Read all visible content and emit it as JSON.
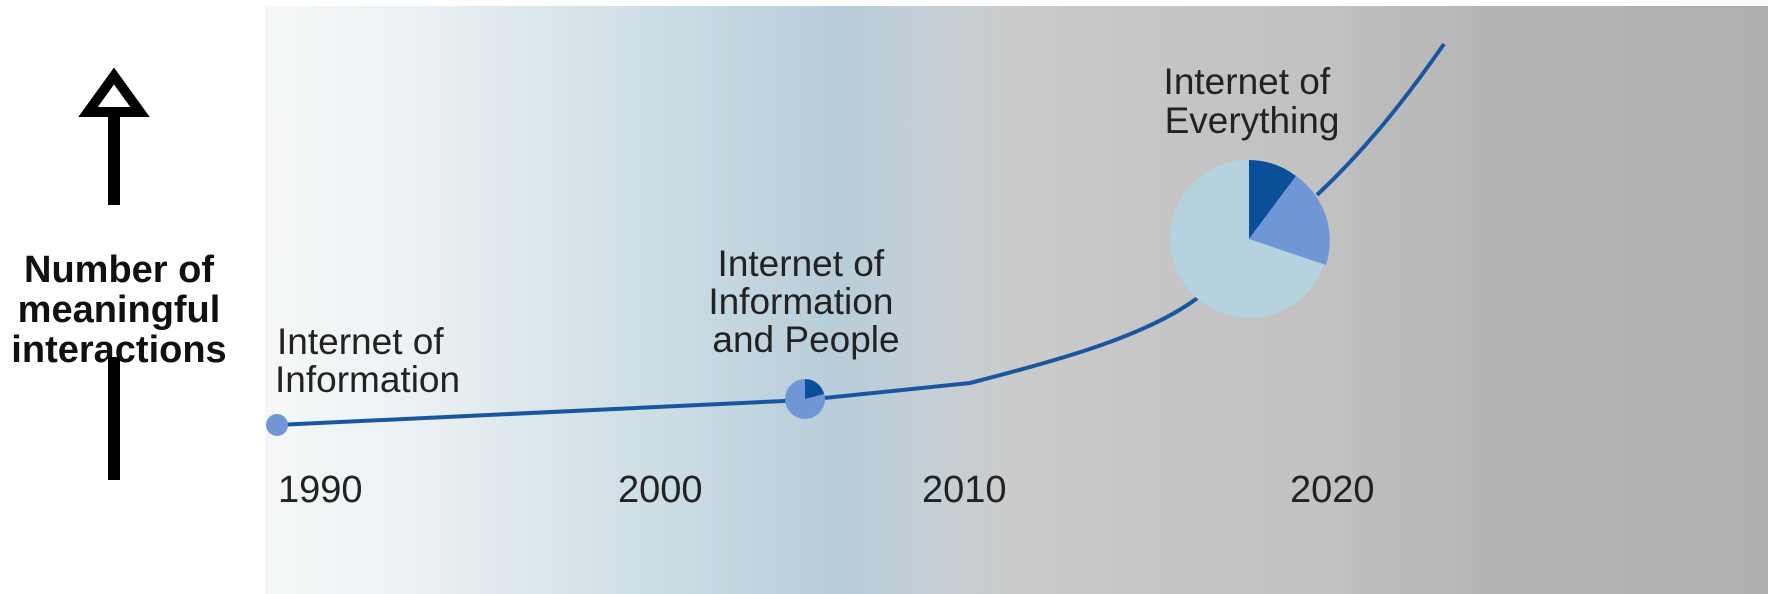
{
  "y_axis": {
    "label_lines": [
      "Number of",
      "meaningful",
      "interactions"
    ]
  },
  "x_axis": {
    "ticks": [
      "1990",
      "2000",
      "2010",
      "2020"
    ]
  },
  "stages": [
    {
      "lines": [
        "Internet of",
        "Information"
      ]
    },
    {
      "lines": [
        "Internet of",
        "Information",
        "and People"
      ]
    },
    {
      "lines": [
        "Internet of",
        "Everything"
      ]
    }
  ],
  "colors": {
    "curve": "#1a56a0",
    "dot_light": "#6f97d6",
    "pie_dark": "#0a4f97",
    "pie_mid": "#6f97d6",
    "pie_light": "#b6d1df",
    "arrow": "#000000",
    "band_start": "#f5f7f8",
    "band_blue": "#b7cdd9",
    "band_grey": "#c5c5c5",
    "band_dark": "#b5b5b5"
  }
}
